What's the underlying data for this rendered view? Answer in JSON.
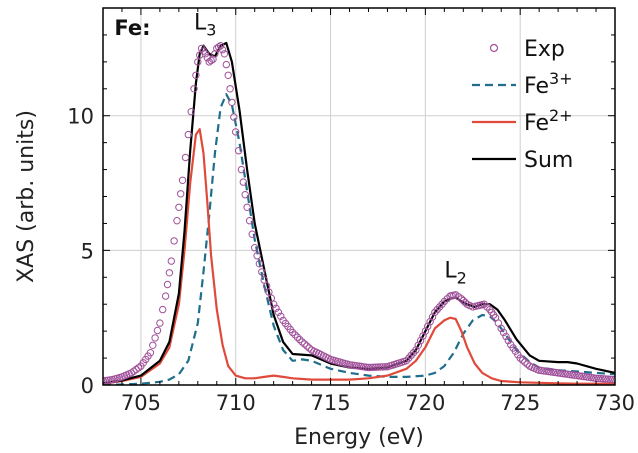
{
  "chart_data": {
    "type": "line",
    "xlabel": "Energy (eV)",
    "ylabel": "XAS (arb. units)",
    "xlim": [
      703,
      730
    ],
    "ylim": [
      0,
      14
    ],
    "x_ticks": [
      705,
      710,
      715,
      720,
      725,
      730
    ],
    "y_ticks": [
      0,
      5,
      10
    ],
    "grid": true,
    "legend_position": "top-right",
    "annotations": [
      {
        "text": "Fe:",
        "x": 703.6,
        "y": 13.0,
        "bold": true
      },
      {
        "text": "L",
        "sub": "3",
        "x": 707.8,
        "y": 13.2
      },
      {
        "text": "L",
        "sub": "2",
        "x": 721.0,
        "y": 4.0
      }
    ],
    "series": [
      {
        "name": "Exp",
        "style": "markers",
        "color": "#a0509a",
        "x": [
          703.0,
          703.5,
          704.0,
          704.5,
          705.0,
          705.5,
          706.0,
          706.3,
          706.6,
          706.9,
          707.2,
          707.5,
          707.8,
          708.0,
          708.2,
          708.4,
          708.6,
          708.8,
          709.0,
          709.2,
          709.4,
          709.6,
          709.8,
          710.0,
          710.3,
          710.6,
          711.0,
          711.5,
          712.0,
          712.5,
          713.0,
          713.5,
          714.0,
          715.0,
          716.0,
          717.0,
          718.0,
          719.0,
          719.5,
          720.0,
          720.5,
          721.0,
          721.3,
          721.6,
          721.9,
          722.2,
          722.5,
          722.8,
          723.1,
          723.4,
          723.7,
          724.0,
          724.5,
          725.0,
          725.5,
          726.0,
          727.0,
          728.0,
          729.0,
          730.0
        ],
        "y": [
          0.15,
          0.2,
          0.3,
          0.45,
          0.7,
          1.2,
          2.3,
          3.3,
          4.6,
          6.1,
          7.6,
          9.3,
          11.0,
          12.0,
          12.5,
          12.3,
          12.0,
          12.1,
          12.5,
          12.6,
          12.3,
          11.5,
          10.5,
          9.4,
          8.0,
          6.6,
          5.1,
          3.9,
          3.0,
          2.4,
          1.95,
          1.6,
          1.3,
          0.95,
          0.75,
          0.65,
          0.68,
          0.9,
          1.3,
          2.0,
          2.7,
          3.1,
          3.3,
          3.35,
          3.2,
          3.0,
          2.9,
          2.95,
          3.0,
          2.8,
          2.5,
          2.1,
          1.5,
          1.0,
          0.7,
          0.55,
          0.45,
          0.35,
          0.25,
          0.2
        ]
      },
      {
        "name": "Fe3+",
        "style": "dashed",
        "color": "#1f6e8c",
        "x": [
          703.0,
          704.0,
          705.0,
          706.0,
          706.5,
          707.0,
          707.5,
          708.0,
          708.3,
          708.6,
          708.9,
          709.2,
          709.5,
          709.8,
          710.2,
          710.6,
          711.0,
          711.5,
          712.0,
          712.5,
          713.0,
          713.5,
          714.0,
          715.0,
          716.0,
          717.0,
          718.0,
          719.0,
          720.0,
          720.5,
          721.0,
          721.5,
          722.0,
          722.5,
          723.0,
          723.4,
          723.8,
          724.2,
          724.8,
          725.5,
          726.0,
          727.0,
          728.0,
          729.0,
          730.0
        ],
        "y": [
          0.01,
          0.02,
          0.05,
          0.12,
          0.2,
          0.4,
          0.9,
          2.3,
          4.2,
          6.3,
          8.6,
          10.3,
          10.8,
          10.4,
          9.0,
          7.2,
          5.4,
          3.7,
          2.2,
          1.3,
          0.9,
          0.95,
          0.9,
          0.6,
          0.45,
          0.35,
          0.3,
          0.3,
          0.35,
          0.45,
          0.7,
          1.2,
          1.9,
          2.4,
          2.6,
          2.55,
          2.3,
          1.9,
          1.3,
          0.85,
          0.65,
          0.55,
          0.5,
          0.45,
          0.4
        ]
      },
      {
        "name": "Fe2+",
        "style": "solid",
        "color": "#e04a3a",
        "x": [
          703.0,
          704.0,
          705.0,
          706.0,
          706.5,
          707.0,
          707.3,
          707.6,
          707.9,
          708.1,
          708.3,
          708.5,
          708.7,
          709.0,
          709.3,
          709.6,
          710.0,
          710.5,
          711.0,
          711.5,
          712.0,
          712.5,
          713.0,
          714.0,
          715.0,
          716.0,
          717.0,
          718.0,
          719.0,
          719.5,
          720.0,
          720.5,
          721.0,
          721.3,
          721.6,
          721.9,
          722.2,
          722.6,
          723.0,
          723.5,
          724.0,
          725.0,
          726.0,
          727.0,
          728.0,
          729.0,
          730.0
        ],
        "y": [
          0.05,
          0.15,
          0.3,
          0.8,
          1.4,
          3.0,
          5.0,
          7.5,
          9.3,
          9.5,
          8.6,
          6.8,
          4.8,
          2.8,
          1.5,
          0.7,
          0.35,
          0.25,
          0.25,
          0.3,
          0.35,
          0.3,
          0.25,
          0.2,
          0.2,
          0.2,
          0.25,
          0.35,
          0.6,
          0.9,
          1.4,
          2.1,
          2.4,
          2.5,
          2.45,
          2.0,
          1.4,
          0.8,
          0.45,
          0.25,
          0.15,
          0.1,
          0.08,
          0.06,
          0.05,
          0.05,
          0.05
        ]
      },
      {
        "name": "Sum",
        "style": "solid",
        "color": "#000000",
        "x": [
          703.0,
          704.0,
          705.0,
          706.0,
          706.5,
          707.0,
          707.3,
          707.6,
          707.9,
          708.1,
          708.3,
          708.6,
          708.9,
          709.2,
          709.5,
          709.8,
          710.2,
          710.6,
          711.0,
          711.5,
          712.0,
          712.5,
          713.0,
          714.0,
          715.0,
          716.0,
          717.0,
          718.0,
          719.0,
          719.5,
          720.0,
          720.5,
          721.0,
          721.3,
          721.6,
          721.9,
          722.2,
          722.6,
          723.0,
          723.4,
          723.8,
          724.2,
          724.8,
          725.5,
          726.0,
          727.0,
          727.5,
          728.0,
          729.0,
          730.0
        ],
        "y": [
          0.06,
          0.17,
          0.35,
          0.9,
          1.6,
          3.4,
          5.7,
          8.7,
          11.2,
          12.3,
          12.6,
          12.3,
          12.2,
          12.6,
          12.7,
          12.0,
          10.2,
          8.0,
          6.0,
          4.3,
          2.6,
          1.6,
          1.15,
          1.1,
          0.8,
          0.65,
          0.6,
          0.65,
          0.9,
          1.3,
          2.0,
          2.7,
          3.1,
          3.2,
          3.25,
          3.1,
          3.0,
          2.9,
          3.0,
          3.0,
          2.8,
          2.4,
          1.7,
          1.1,
          0.9,
          0.85,
          0.85,
          0.8,
          0.6,
          0.45
        ]
      }
    ],
    "legend": [
      {
        "label": "Exp",
        "sup": ""
      },
      {
        "label": "Fe",
        "sup": "3+"
      },
      {
        "label": "Fe",
        "sup": "2+"
      },
      {
        "label": "Sum",
        "sup": ""
      }
    ]
  }
}
